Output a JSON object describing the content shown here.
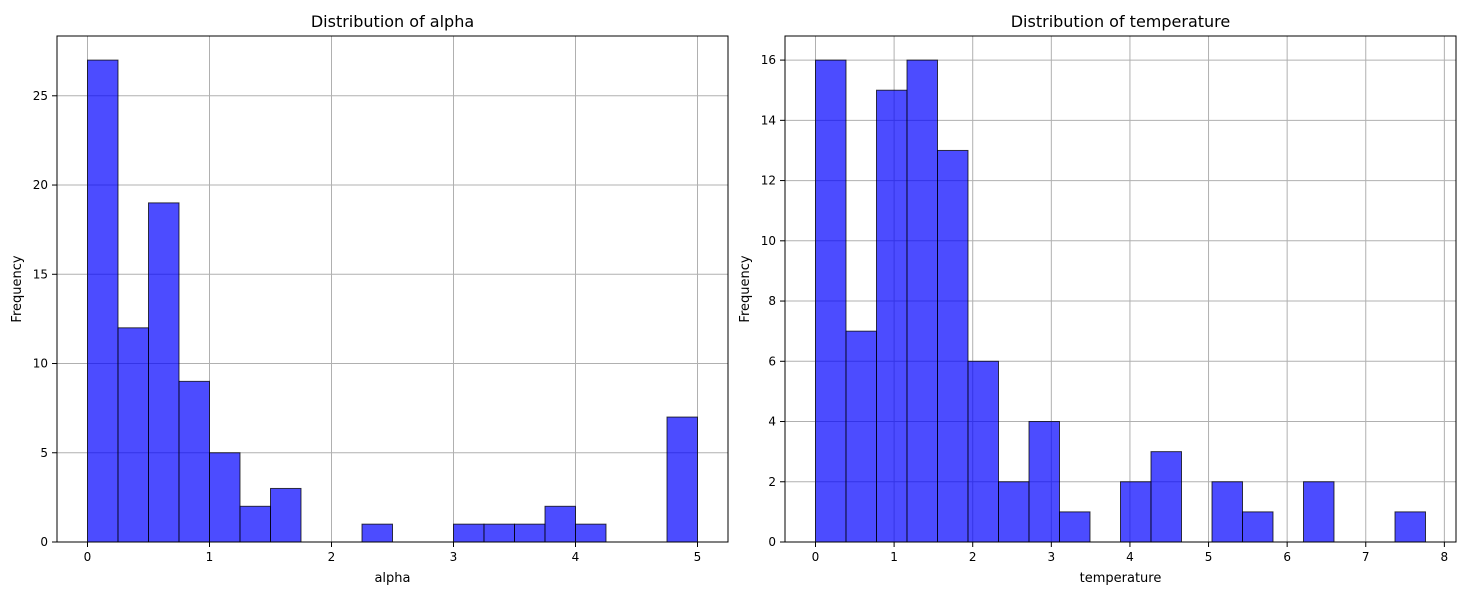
{
  "chart_data": [
    {
      "type": "bar",
      "title": "Distribution of alpha",
      "xlabel": "alpha",
      "ylabel": "Frequency",
      "xlim": [
        -0.25,
        5.25
      ],
      "ylim": [
        0,
        28.35
      ],
      "xticks": [
        0,
        1,
        2,
        3,
        4,
        5
      ],
      "yticks": [
        0,
        5,
        10,
        15,
        20,
        25
      ],
      "grid": true,
      "bar_color": "#0000ff",
      "bar_opacity": 0.7,
      "edge_color": "#000000",
      "bin_edges": [
        0,
        0.25,
        0.5,
        0.75,
        1.0,
        1.25,
        1.5,
        1.75,
        2.0,
        2.25,
        2.5,
        2.75,
        3.0,
        3.25,
        3.5,
        3.75,
        4.0,
        4.25,
        4.5,
        4.75,
        5.0
      ],
      "values": [
        27,
        12,
        19,
        9,
        5,
        2,
        3,
        0,
        0,
        1,
        0,
        0,
        1,
        1,
        1,
        2,
        1,
        0,
        0,
        7
      ]
    },
    {
      "type": "bar",
      "title": "Distribution of temperature",
      "xlabel": "temperature",
      "ylabel": "Frequency",
      "xlim": [
        -0.388,
        8.148
      ],
      "ylim": [
        0,
        16.8
      ],
      "xticks": [
        0,
        1,
        2,
        3,
        4,
        5,
        6,
        7,
        8
      ],
      "yticks": [
        0,
        2,
        4,
        6,
        8,
        10,
        12,
        14,
        16
      ],
      "grid": true,
      "bar_color": "#0000ff",
      "bar_opacity": 0.7,
      "edge_color": "#000000",
      "bin_edges": [
        0,
        0.388,
        0.776,
        1.164,
        1.552,
        1.94,
        2.328,
        2.716,
        3.104,
        3.492,
        3.88,
        4.268,
        4.656,
        5.044,
        5.432,
        5.82,
        6.208,
        6.596,
        6.984,
        7.372,
        7.76
      ],
      "values": [
        16,
        7,
        15,
        16,
        13,
        6,
        2,
        4,
        1,
        0,
        2,
        3,
        0,
        2,
        1,
        0,
        2,
        0,
        0,
        1
      ]
    }
  ]
}
